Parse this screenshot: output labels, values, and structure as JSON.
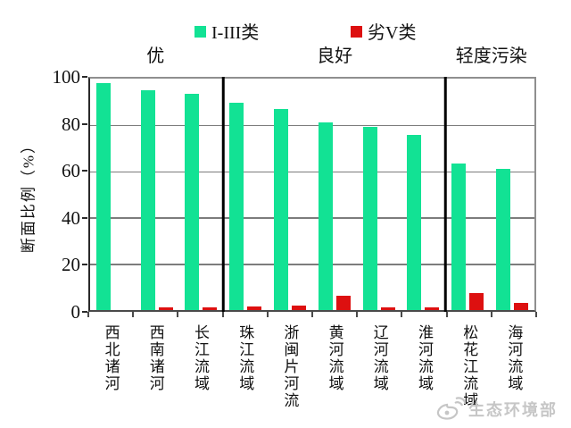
{
  "figure": {
    "background": "#ffffff",
    "watermark": {
      "text": "生态环境部",
      "icon": "weibo-eye-logo"
    }
  },
  "chart_data": {
    "type": "bar",
    "title": "",
    "xlabel": "",
    "ylabel": "断面比例（%）",
    "ylim": [
      0,
      100
    ],
    "yticks": [
      0,
      20,
      40,
      60,
      80,
      100
    ],
    "grid": "horizontal",
    "legend_position": "top",
    "categories": [
      "西北诸河",
      "西南诸河",
      "长江流域",
      "珠江流域",
      "浙闽片河流",
      "黄河流域",
      "辽河流域",
      "淮河流域",
      "松花江流域",
      "海河流域"
    ],
    "series": [
      {
        "name": "I-III类",
        "color": "#12e294",
        "values": [
          98,
          95,
          93.5,
          89.5,
          87,
          81,
          79,
          75.5,
          63.5,
          61
        ]
      },
      {
        "name": "劣V类",
        "color": "#dd1010",
        "values": [
          0,
          1,
          1,
          1.5,
          1.8,
          6,
          1.2,
          1,
          7.5,
          3
        ]
      }
    ],
    "group_annotations": [
      {
        "label": "优",
        "start": 0,
        "end": 3
      },
      {
        "label": "良好",
        "start": 3,
        "end": 8
      },
      {
        "label": "轻度污染",
        "start": 8,
        "end": 10
      }
    ],
    "axis_colors": {
      "grid": "#7c7c7c",
      "frame": "#8f8f8f",
      "divider": "#000000"
    }
  }
}
